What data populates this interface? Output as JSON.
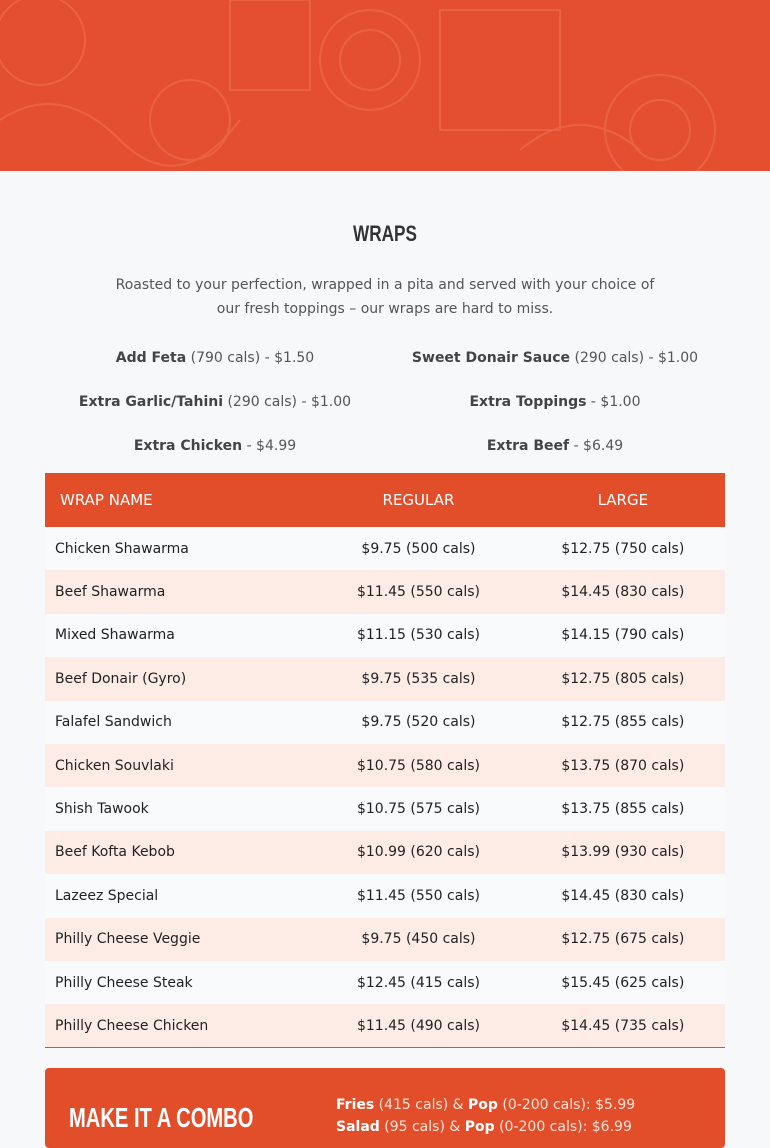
{
  "brand_color": "#e34e2a",
  "section": {
    "title": "WRAPS",
    "description": "Roasted to your perfection, wrapped in a pita and served with your choice of our fresh toppings – our wraps are hard to miss."
  },
  "addons": [
    {
      "name": "Add Feta",
      "detail": " (790 cals) - $1.50"
    },
    {
      "name": "Sweet Donair Sauce",
      "detail": " (290 cals) - $1.00"
    },
    {
      "name": "Extra Garlic/Tahini",
      "detail": " (290 cals) - $1.00"
    },
    {
      "name": "Extra Toppings",
      "detail": " - $1.00"
    },
    {
      "name": "Extra Chicken",
      "detail": " - $4.99"
    },
    {
      "name": "Extra Beef",
      "detail": " - $6.49"
    }
  ],
  "table": {
    "headers": [
      "WRAP NAME",
      "REGULAR",
      "LARGE"
    ],
    "rows": [
      [
        "Chicken Shawarma",
        "$9.75 (500 cals)",
        "$12.75 (750 cals)"
      ],
      [
        "Beef Shawarma",
        "$11.45 (550 cals)",
        "$14.45 (830 cals)"
      ],
      [
        "Mixed Shawarma",
        "$11.15 (530 cals)",
        "$14.15 (790 cals)"
      ],
      [
        "Beef Donair (Gyro)",
        "$9.75 (535 cals)",
        "$12.75 (805 cals)"
      ],
      [
        "Falafel Sandwich",
        "$9.75 (520 cals)",
        "$12.75 (855 cals)"
      ],
      [
        "Chicken Souvlaki",
        "$10.75 (580 cals)",
        "$13.75 (870 cals)"
      ],
      [
        "Shish Tawook",
        "$10.75 (575 cals)",
        "$13.75 (855 cals)"
      ],
      [
        "Beef Kofta Kebob",
        "$10.99 (620 cals)",
        "$13.99 (930 cals)"
      ],
      [
        "Lazeez Special",
        "$11.45 (550 cals)",
        "$14.45 (830 cals)"
      ],
      [
        "Philly Cheese Veggie",
        "$9.75 (450 cals)",
        "$12.75 (675 cals)"
      ],
      [
        "Philly Cheese Steak",
        "$12.45 (415 cals)",
        "$15.45 (625 cals)"
      ],
      [
        "Philly Cheese Chicken",
        "$11.45 (490 cals)",
        "$14.45 (735 cals)"
      ]
    ]
  },
  "combo": {
    "title": "MAKE IT A COMBO",
    "lines": [
      {
        "item": "Fries",
        "item_cals": " (415 cals) & ",
        "drink": "Pop",
        "rest": " (0-200 cals):  $5.99"
      },
      {
        "item": "Salad",
        "item_cals": " (95 cals) & ",
        "drink": "Pop",
        "rest": " (0-200 cals):  $6.99"
      }
    ]
  }
}
